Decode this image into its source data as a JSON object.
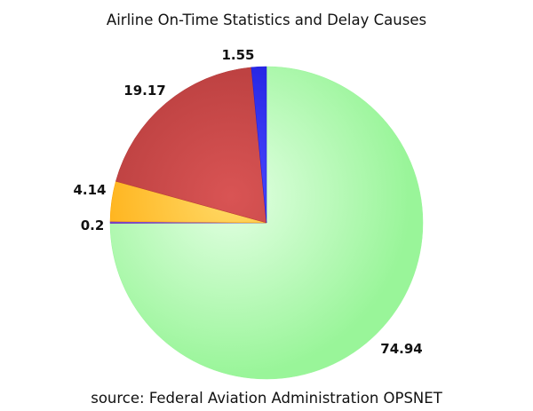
{
  "chart_data": {
    "type": "pie",
    "title": "Airline On-Time Statistics and Delay Causes",
    "footnote": "source: Federal Aviation Administration OPSNET",
    "start_angle_deg": 0,
    "direction": "clockwise",
    "slices": [
      {
        "value": 74.94,
        "label": "74.94",
        "color": "#99f599",
        "highlight": "#e4ffe4"
      },
      {
        "value": 0.2,
        "label": "0.2",
        "color": "#6a2ab8",
        "highlight": "#9a6ae0"
      },
      {
        "value": 4.14,
        "label": "4.14",
        "color": "#ffa500",
        "highlight": "#ffd966"
      },
      {
        "value": 19.17,
        "label": "19.17",
        "color": "#b23a3a",
        "highlight": "#d95454"
      },
      {
        "value": 1.55,
        "label": "1.55",
        "color": "#1a1adc",
        "highlight": "#4a4aff"
      }
    ]
  }
}
